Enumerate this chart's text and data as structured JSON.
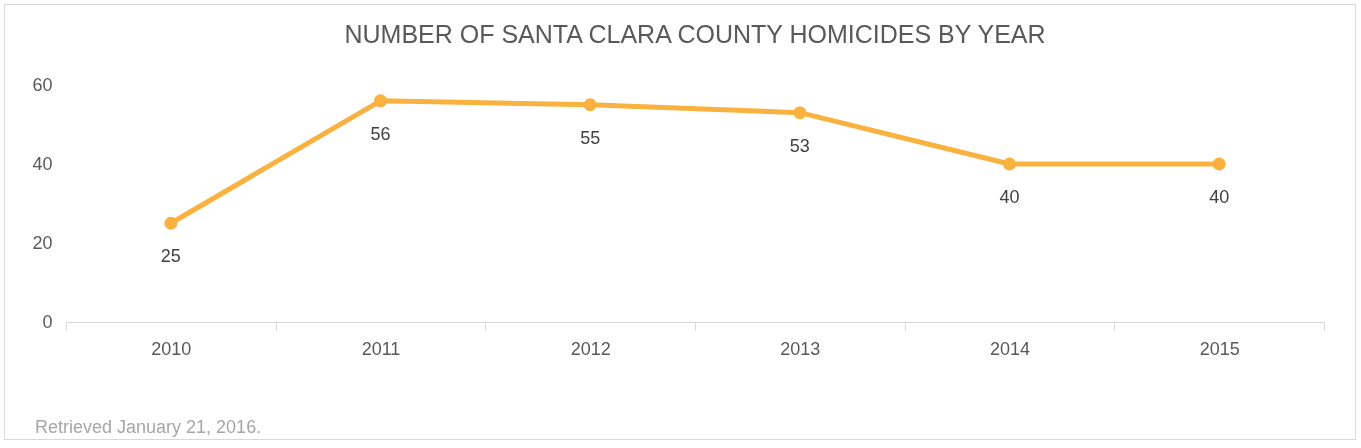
{
  "chart_data": {
    "type": "line",
    "title": "NUMBER OF SANTA CLARA COUNTY HOMICIDES BY YEAR",
    "categories": [
      "2010",
      "2011",
      "2012",
      "2013",
      "2014",
      "2015"
    ],
    "series": [
      {
        "color": "#f9b13f",
        "values": [
          25,
          56,
          55,
          53,
          40,
          40
        ]
      }
    ],
    "ylim": [
      0,
      60
    ],
    "yticks": [
      0,
      20,
      40,
      60
    ],
    "marker": "circle",
    "line_style": "solid",
    "data_labels": true,
    "annotations": [
      "Retrieved January 21, 2016."
    ]
  }
}
